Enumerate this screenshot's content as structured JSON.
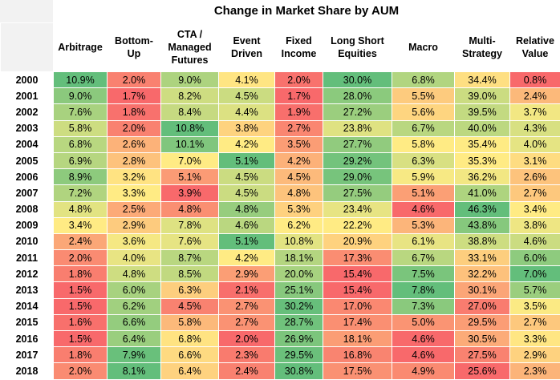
{
  "chart_data": {
    "type": "heatmap",
    "title": "Change in Market Share by AUM",
    "columns": [
      "Arbitrage",
      "Bottom-Up",
      "CTA / Managed Futures",
      "Event Driven",
      "Fixed Income",
      "Long Short Equities",
      "Macro",
      "Multi-Strategy",
      "Relative Value"
    ],
    "rows": [
      "2000",
      "2001",
      "2002",
      "2003",
      "2004",
      "2005",
      "2006",
      "2007",
      "2008",
      "2009",
      "2010",
      "2011",
      "2012",
      "2013",
      "2014",
      "2015",
      "2016",
      "2017",
      "2018"
    ],
    "values": [
      [
        "10.9%",
        "2.0%",
        "9.0%",
        "4.1%",
        "2.0%",
        "30.0%",
        "6.8%",
        "34.4%",
        "0.8%"
      ],
      [
        "9.0%",
        "1.7%",
        "8.2%",
        "4.5%",
        "1.7%",
        "28.0%",
        "5.5%",
        "39.0%",
        "2.4%"
      ],
      [
        "7.6%",
        "1.8%",
        "8.4%",
        "4.4%",
        "1.9%",
        "27.2%",
        "5.6%",
        "39.5%",
        "3.7%"
      ],
      [
        "5.8%",
        "2.0%",
        "10.8%",
        "3.8%",
        "2.7%",
        "23.8%",
        "6.7%",
        "40.0%",
        "4.3%"
      ],
      [
        "6.8%",
        "2.6%",
        "10.1%",
        "4.2%",
        "3.5%",
        "27.7%",
        "5.8%",
        "35.4%",
        "4.0%"
      ],
      [
        "6.9%",
        "2.8%",
        "7.0%",
        "5.1%",
        "4.2%",
        "29.2%",
        "6.3%",
        "35.3%",
        "3.1%"
      ],
      [
        "8.9%",
        "3.2%",
        "5.1%",
        "4.5%",
        "4.5%",
        "29.0%",
        "5.9%",
        "36.2%",
        "2.6%"
      ],
      [
        "7.2%",
        "3.3%",
        "3.9%",
        "4.5%",
        "4.8%",
        "27.5%",
        "5.1%",
        "41.0%",
        "2.7%"
      ],
      [
        "4.8%",
        "2.5%",
        "4.8%",
        "4.8%",
        "5.3%",
        "23.4%",
        "4.6%",
        "46.3%",
        "3.4%"
      ],
      [
        "3.4%",
        "2.9%",
        "7.8%",
        "4.6%",
        "6.2%",
        "22.2%",
        "5.3%",
        "43.8%",
        "3.8%"
      ],
      [
        "2.4%",
        "3.6%",
        "7.6%",
        "5.1%",
        "10.8%",
        "20.9%",
        "6.1%",
        "38.8%",
        "4.6%"
      ],
      [
        "2.0%",
        "4.0%",
        "8.7%",
        "4.2%",
        "18.1%",
        "17.3%",
        "6.7%",
        "33.1%",
        "6.0%"
      ],
      [
        "1.8%",
        "4.8%",
        "8.5%",
        "2.9%",
        "20.0%",
        "15.4%",
        "7.5%",
        "32.2%",
        "7.0%"
      ],
      [
        "1.5%",
        "6.0%",
        "6.3%",
        "2.1%",
        "25.1%",
        "15.4%",
        "7.8%",
        "30.1%",
        "5.7%"
      ],
      [
        "1.5%",
        "6.2%",
        "4.5%",
        "2.7%",
        "30.2%",
        "17.0%",
        "7.3%",
        "27.0%",
        "3.5%"
      ],
      [
        "1.6%",
        "6.6%",
        "5.8%",
        "2.7%",
        "28.7%",
        "17.4%",
        "5.0%",
        "29.5%",
        "2.7%"
      ],
      [
        "1.5%",
        "6.4%",
        "6.8%",
        "2.0%",
        "26.9%",
        "18.1%",
        "4.6%",
        "30.5%",
        "3.3%"
      ],
      [
        "1.8%",
        "7.9%",
        "6.6%",
        "2.3%",
        "29.5%",
        "16.8%",
        "4.6%",
        "27.5%",
        "2.9%"
      ],
      [
        "2.0%",
        "8.1%",
        "6.4%",
        "2.4%",
        "30.8%",
        "17.5%",
        "4.9%",
        "25.6%",
        "2.3%"
      ]
    ],
    "color_scale": {
      "low": "#f8696b",
      "mid": "#ffeb84",
      "high": "#63be7b",
      "scope": "per-column"
    }
  }
}
